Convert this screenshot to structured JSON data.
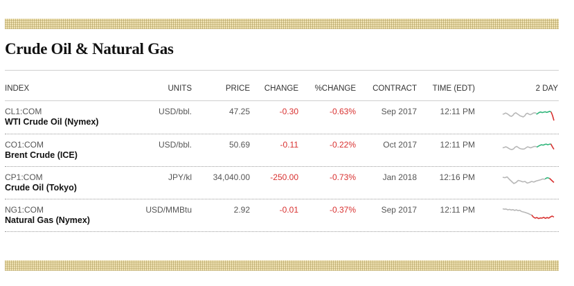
{
  "page": {
    "title": "Crude Oil & Natural Gas"
  },
  "table": {
    "headers": {
      "index": "INDEX",
      "units": "UNITS",
      "price": "PRICE",
      "change": "CHANGE",
      "pct_change": "%CHANGE",
      "contract": "CONTRACT",
      "time": "TIME (EDT)",
      "two_day": "2 DAY"
    },
    "rows": [
      {
        "ticker": "CL1:COM",
        "name": "WTI Crude Oil (Nymex)",
        "units": "USD/bbl.",
        "price": "47.25",
        "change": "-0.30",
        "pct_change": "-0.63%",
        "contract": "Sep 2017",
        "time": "12:11 PM",
        "spark": {
          "gray": [
            60,
            62,
            66,
            63,
            58,
            52,
            50,
            55,
            64,
            67,
            62,
            57,
            52,
            50,
            47,
            52,
            62,
            65,
            60,
            58,
            62,
            66,
            67,
            65
          ],
          "green": [
            60,
            64,
            69,
            71,
            68,
            70,
            72,
            69,
            71,
            74,
            72
          ],
          "red": [
            72,
            55,
            30
          ]
        }
      },
      {
        "ticker": "CO1:COM",
        "name": "Brent Crude (ICE)",
        "units": "USD/bbl.",
        "price": "50.69",
        "change": "-0.11",
        "pct_change": "-0.22%",
        "contract": "Oct 2017",
        "time": "12:11 PM",
        "spark": {
          "gray": [
            55,
            57,
            60,
            57,
            52,
            48,
            47,
            50,
            58,
            62,
            57,
            52,
            50,
            49,
            50,
            55,
            60,
            58,
            55,
            58,
            61,
            62,
            60
          ],
          "green": [
            58,
            63,
            67,
            70,
            68,
            71,
            73,
            70,
            72,
            74
          ],
          "red": [
            74,
            60,
            48
          ]
        }
      },
      {
        "ticker": "CP1:COM",
        "name": "Crude Oil (Tokyo)",
        "units": "JPY/kl",
        "price": "34,040.00",
        "change": "-250.00",
        "pct_change": "-0.73%",
        "contract": "Jan 2018",
        "time": "12:16 PM",
        "spark": {
          "gray": [
            70,
            68,
            72,
            60,
            50,
            40,
            45,
            55,
            52,
            48,
            50,
            42,
            45,
            50,
            47,
            52,
            55,
            58,
            62,
            60
          ],
          "green": [
            62,
            68,
            65
          ],
          "red": [
            65,
            55,
            45
          ]
        }
      },
      {
        "ticker": "NG1:COM",
        "name": "Natural Gas (Nymex)",
        "units": "USD/MMBtu",
        "price": "2.92",
        "change": "-0.01",
        "pct_change": "-0.37%",
        "contract": "Sep 2017",
        "time": "12:11 PM",
        "spark": {
          "gray": [
            75,
            73,
            74,
            70,
            72,
            69,
            71,
            67,
            70,
            66,
            68,
            62,
            60,
            58,
            55,
            52,
            48,
            45
          ],
          "green": [],
          "red": [
            45,
            35,
            30,
            33,
            28,
            31,
            30,
            34,
            29,
            33,
            30,
            36,
            40,
            35
          ]
        }
      }
    ]
  },
  "colors": {
    "negative": "#d8302f",
    "spark_up": "#2fb57a",
    "spark_down": "#d8302f",
    "spark_history": "#b7b7b7"
  },
  "icons": {
    "sparkline": "mini-line-chart"
  }
}
